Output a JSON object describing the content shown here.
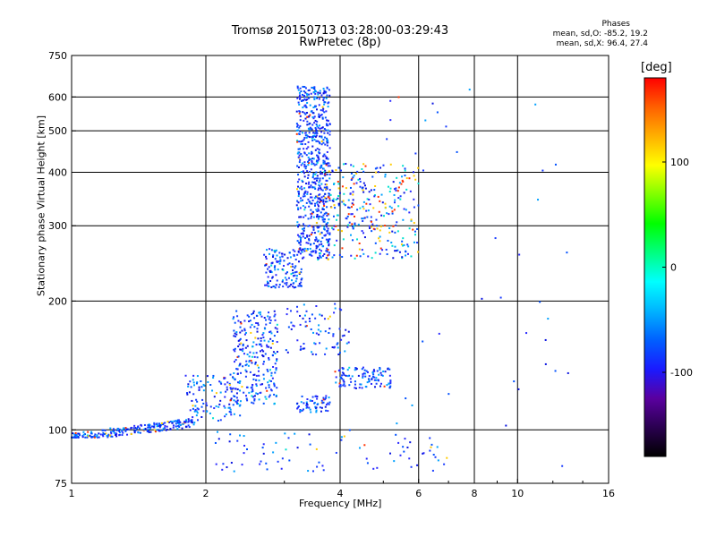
{
  "header": {
    "title_line1": "Tromsø 20150713 03:28:00-03:29:43",
    "title_line2": "RwPretec (8p)"
  },
  "phases_box": {
    "heading": "Phases",
    "line_o": "mean, sd,O: -85.2, 19.2",
    "line_x": "mean, sd,X:  96.4, 27.4"
  },
  "colorbar": {
    "unit_label": "[deg]",
    "tick_labels": [
      "100",
      "0",
      "-100"
    ],
    "stops": [
      "#000000",
      "#2a0050",
      "#5a00a0",
      "#1a1aff",
      "#0060ff",
      "#00b4ff",
      "#00ffff",
      "#00ff80",
      "#00ff00",
      "#80ff00",
      "#ffff00",
      "#ffb000",
      "#ff6000",
      "#ff0000"
    ]
  },
  "chart_data": {
    "type": "scatter",
    "title": "Tromsø 20150713 03:28:00-03:29:43",
    "subtitle": "RwPretec (8p)",
    "xlabel": "Frequency [MHz]",
    "ylabel": "Stationary phase Virtual Height [km]",
    "x_scale": "log",
    "y_scale": "log",
    "xlim": [
      1,
      16
    ],
    "ylim": [
      75,
      750
    ],
    "x_ticks": [
      1,
      2,
      4,
      6,
      8,
      10,
      16
    ],
    "y_ticks": [
      75,
      100,
      200,
      300,
      400,
      500,
      600,
      750
    ],
    "x_grid": [
      2,
      4,
      6,
      8,
      10
    ],
    "y_grid": [
      100,
      200,
      300,
      400,
      500,
      600
    ],
    "color_scale": "phase [deg]",
    "point_colors": [
      "#0a14e0",
      "#1a3cff",
      "#0050ff",
      "#2a2aff",
      "#00a0ff",
      "#ffcc00",
      "#00e0d0",
      "#ff3000"
    ],
    "clusters": [
      {
        "x_range": [
          1.0,
          1.9
        ],
        "y_range": [
          96,
          110
        ],
        "count": 240,
        "shape": "rising"
      },
      {
        "x_range": [
          1.8,
          2.4
        ],
        "y_range": [
          105,
          135
        ],
        "count": 120,
        "shape": "fill"
      },
      {
        "x_range": [
          2.3,
          2.9
        ],
        "y_range": [
          115,
          190
        ],
        "count": 260,
        "shape": "fill"
      },
      {
        "x_range": [
          2.7,
          3.3
        ],
        "y_range": [
          215,
          265
        ],
        "count": 140,
        "shape": "fill"
      },
      {
        "x_range": [
          3.2,
          3.8
        ],
        "y_range": [
          250,
          640
        ],
        "count": 650,
        "shape": "fill"
      },
      {
        "x_range": [
          3.6,
          6.0
        ],
        "y_range": [
          250,
          420
        ],
        "count": 320,
        "shape": "scatter"
      },
      {
        "x_range": [
          3.9,
          5.2
        ],
        "y_range": [
          125,
          140
        ],
        "count": 110,
        "shape": "fill"
      },
      {
        "x_range": [
          3.2,
          3.8
        ],
        "y_range": [
          110,
          120
        ],
        "count": 60,
        "shape": "fill"
      },
      {
        "x_range": [
          3.0,
          4.2
        ],
        "y_range": [
          150,
          200
        ],
        "count": 80,
        "shape": "scatter"
      },
      {
        "x_range": [
          2.0,
          7.0
        ],
        "y_range": [
          80,
          100
        ],
        "count": 80,
        "shape": "scatter"
      },
      {
        "x_range": [
          5.0,
          13.0
        ],
        "y_range": [
          80,
          640
        ],
        "count": 40,
        "shape": "scatter"
      }
    ]
  }
}
